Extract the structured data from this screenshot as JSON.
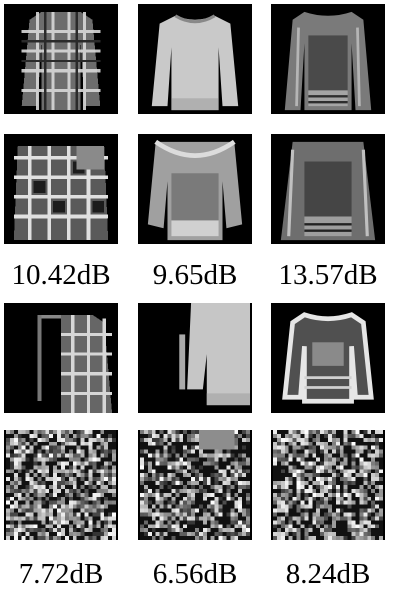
{
  "groups": [
    {
      "labels": [
        "10.42dB",
        "9.65dB",
        "13.57dB"
      ]
    },
    {
      "labels": [
        "7.72dB",
        "6.56dB",
        "8.24dB"
      ]
    }
  ],
  "tiles": {
    "row0": [
      "plaid-shirt-icon",
      "light-sweater-icon",
      "dark-sweater-icon"
    ],
    "row1": [
      "plaid-shirt-reconstruction-icon",
      "light-sweater-reconstruction-icon",
      "dark-sweater-reconstruction-icon"
    ],
    "row2": [
      "shifted-plaid-shirt-icon",
      "shifted-light-sweater-icon",
      "outlined-sweater-icon"
    ],
    "row3": [
      "noise-reconstruction-icon",
      "noise-reconstruction-icon",
      "noise-reconstruction-icon"
    ]
  }
}
